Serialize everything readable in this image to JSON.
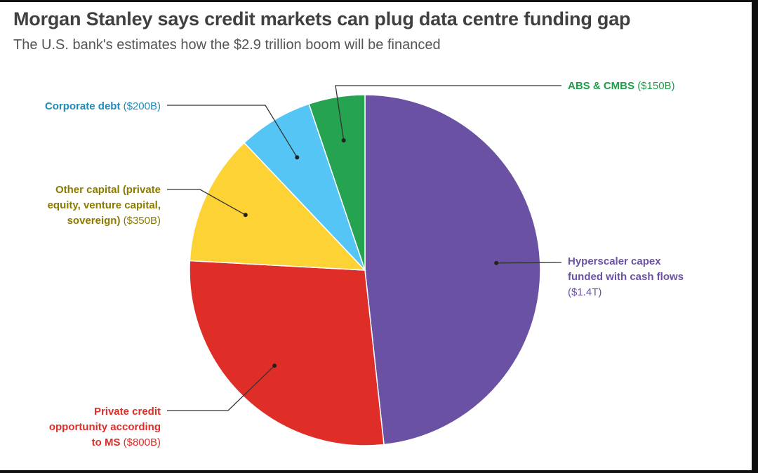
{
  "title": "Morgan Stanley says credit markets can plug data centre funding gap",
  "subtitle": "The U.S. bank's estimates how the $2.9 trillion boom will be financed",
  "chart_data": {
    "type": "pie",
    "unit": "USD billions",
    "slices": [
      {
        "lines": [
          "Hyperscaler capex",
          "funded with cash flows"
        ],
        "amount_text": "($1.4T)",
        "value": 1400,
        "color": "#6a51a3"
      },
      {
        "lines": [
          "Private credit",
          "opportunity according",
          "to MS"
        ],
        "amount_text": "($800B)",
        "value": 800,
        "color": "#df2e28"
      },
      {
        "lines": [
          "Other capital (private",
          "equity, venture capital,",
          "sovereign)"
        ],
        "amount_text": "($350B)",
        "value": 350,
        "color": "#fdd234"
      },
      {
        "lines": [
          "Corporate debt"
        ],
        "amount_text": "($200B)",
        "value": 200,
        "color": "#55c5f5"
      },
      {
        "lines": [
          "ABS & CMBS"
        ],
        "amount_text": "($150B)",
        "value": 150,
        "color": "#25a350"
      }
    ],
    "label_colors": [
      "#6a51a3",
      "#df2e28",
      "#8a7a00",
      "#1f8bb8",
      "#1e9e4a"
    ]
  }
}
